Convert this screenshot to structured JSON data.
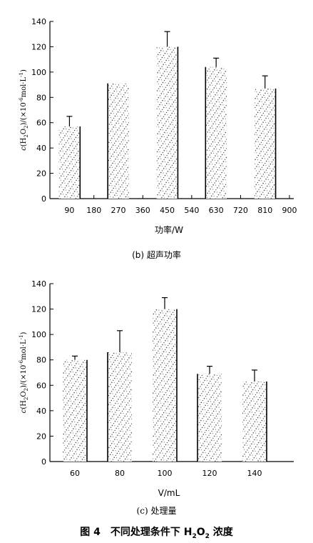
{
  "chart_data": [
    {
      "type": "bar",
      "caption": "(b) 超声功率",
      "xlabel": "功率/W",
      "ylabel": "c(H2O2)/(×10⁻⁶mol·L⁻¹)",
      "ylim": [
        0,
        140
      ],
      "yticks": [
        0,
        20,
        40,
        60,
        80,
        100,
        120,
        140
      ],
      "xlim": [
        0,
        900
      ],
      "xticks": [
        90,
        180,
        270,
        360,
        450,
        540,
        630,
        720,
        810,
        900
      ],
      "bar_centers": [
        90,
        270,
        450,
        630,
        810
      ],
      "values": [
        57,
        91,
        120,
        104,
        87
      ],
      "errors": [
        8,
        0,
        12,
        7,
        10
      ],
      "bar_width": 90
    },
    {
      "type": "bar",
      "caption": "(c) 处理量",
      "xlabel": "V/mL",
      "ylabel": "c(H2O2)/(×10⁻⁶mol·L⁻¹)",
      "ylim": [
        0,
        140
      ],
      "yticks": [
        0,
        20,
        40,
        60,
        80,
        100,
        120,
        140
      ],
      "categories": [
        "60",
        "80",
        "100",
        "120",
        "140"
      ],
      "values": [
        80,
        86,
        120,
        69,
        63
      ],
      "errors": [
        3,
        17,
        9,
        6,
        9
      ]
    }
  ],
  "figure_title_prefix": "图 4　不同处理条件下 H",
  "figure_title_sub1": "2",
  "figure_title_mid": "O",
  "figure_title_sub2": "2",
  "figure_title_suffix": " 浓度",
  "ylabel_prefix": "c",
  "ylabel_main": "(H",
  "ylabel_sub": "2",
  "ylabel_o": "O",
  "ylabel_sub2": "2",
  "ylabel_unit": ")/(×10",
  "ylabel_exp": "-6",
  "ylabel_tail": "mol·L",
  "ylabel_exp2": "-1",
  "ylabel_close": ")"
}
